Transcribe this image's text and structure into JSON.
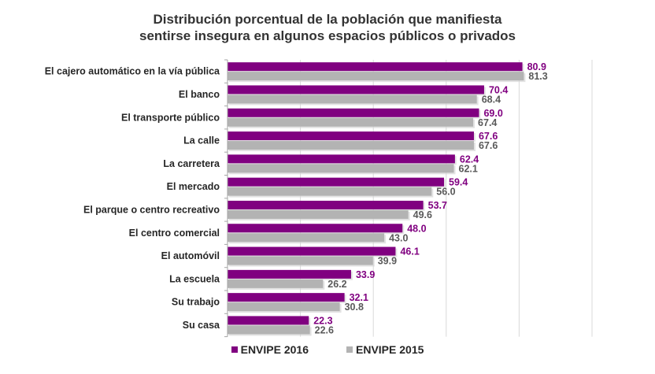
{
  "chart_data": {
    "type": "bar",
    "orientation": "horizontal",
    "title": "Distribución porcentual de la población que manifiesta sentirse insegura en algunos espacios públicos o privados",
    "title_lines": [
      "Distribución porcentual de la población que manifiesta",
      "sentirse insegura en algunos espacios públicos o privados"
    ],
    "xlabel": "",
    "ylabel": "",
    "xlim": [
      0,
      100
    ],
    "grid": true,
    "legend_position": "bottom",
    "categories": [
      "El cajero automático en la vía pública",
      "El banco",
      "El transporte público",
      "La calle",
      "La carretera",
      "El mercado",
      "El parque o centro recreativo",
      "El centro comercial",
      "El automóvil",
      "La escuela",
      "Su trabajo",
      "Su casa"
    ],
    "series": [
      {
        "name": "ENVIPE 2016",
        "color": "#800080",
        "label_color": "#800080",
        "values": [
          80.9,
          70.4,
          69.0,
          67.6,
          62.4,
          59.4,
          53.7,
          48.0,
          46.1,
          33.9,
          32.1,
          22.3
        ],
        "labels": [
          "80.9",
          "70.4",
          "69.0",
          "67.6",
          "62.4",
          "59.4",
          "53.7",
          "48.0",
          "46.1",
          "33.9",
          "32.1",
          "22.3"
        ]
      },
      {
        "name": "ENVIPE 2015",
        "color": "#b3b3b3",
        "label_color": "#595959",
        "values": [
          81.3,
          68.4,
          67.4,
          67.6,
          62.1,
          56.0,
          49.6,
          43.0,
          39.9,
          26.2,
          30.8,
          22.6
        ],
        "labels": [
          "81.3",
          "68.4",
          "67.4",
          "67.6",
          "62.1",
          "56.0",
          "49.6",
          "43.0",
          "39.9",
          "26.2",
          "30.8",
          "22.6"
        ]
      }
    ]
  }
}
